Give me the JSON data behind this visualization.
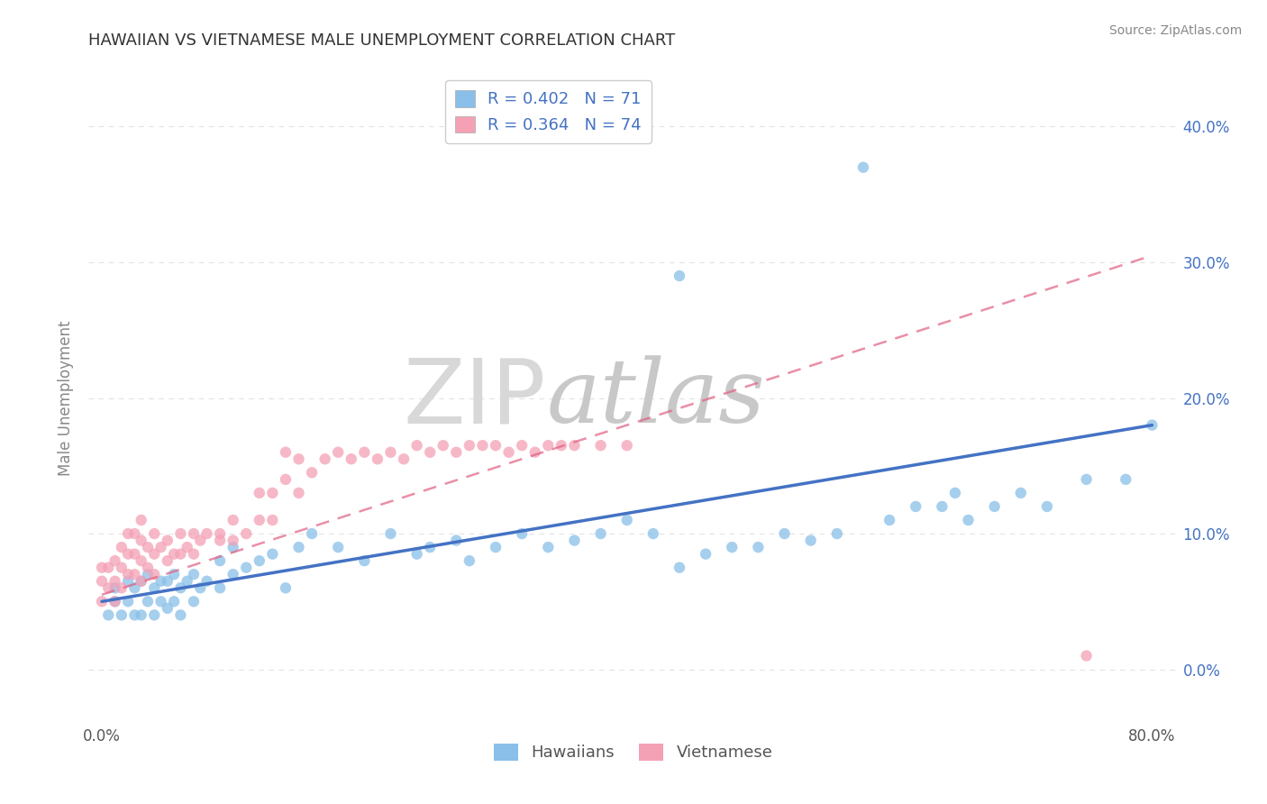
{
  "title": "HAWAIIAN VS VIETNAMESE MALE UNEMPLOYMENT CORRELATION CHART",
  "source": "Source: ZipAtlas.com",
  "ylabel": "Male Unemployment",
  "xlim": [
    -0.01,
    0.82
  ],
  "ylim": [
    -0.04,
    0.44
  ],
  "xticks": [
    0.0,
    0.1,
    0.2,
    0.3,
    0.4,
    0.5,
    0.6,
    0.7,
    0.8
  ],
  "xticklabels": [
    "0.0%",
    "",
    "",
    "",
    "",
    "",
    "",
    "",
    "80.0%"
  ],
  "yticks": [
    0.0,
    0.1,
    0.2,
    0.3,
    0.4
  ],
  "yticklabels": [
    "",
    "",
    "",
    "",
    ""
  ],
  "right_yticks": [
    0.0,
    0.1,
    0.2,
    0.3,
    0.4
  ],
  "right_yticklabels": [
    "0.0%",
    "10.0%",
    "20.0%",
    "30.0%",
    "40.0%"
  ],
  "hawaiian_color": "#89bfe8",
  "vietnamese_color": "#f4a0b5",
  "hawaiian_trend_color": "#4472c4",
  "vietnamese_trend_color": "#e06080",
  "hawaiian_R": 0.402,
  "hawaiian_N": 71,
  "vietnamese_R": 0.364,
  "vietnamese_N": 74,
  "watermark_zip": "ZIP",
  "watermark_atlas": "atlas",
  "bg_color": "#ffffff",
  "grid_color": "#d0d0d0",
  "legend_label_hawaiians": "Hawaiians",
  "legend_label_vietnamese": "Vietnamese",
  "title_color": "#333333",
  "legend_text_color": "#4472c4",
  "hawaiian_scatter_x": [
    0.005,
    0.01,
    0.01,
    0.015,
    0.02,
    0.02,
    0.025,
    0.025,
    0.03,
    0.03,
    0.035,
    0.035,
    0.04,
    0.04,
    0.045,
    0.045,
    0.05,
    0.05,
    0.055,
    0.055,
    0.06,
    0.06,
    0.065,
    0.07,
    0.07,
    0.075,
    0.08,
    0.09,
    0.09,
    0.1,
    0.1,
    0.11,
    0.12,
    0.13,
    0.14,
    0.15,
    0.16,
    0.18,
    0.2,
    0.22,
    0.24,
    0.25,
    0.27,
    0.28,
    0.3,
    0.32,
    0.34,
    0.36,
    0.38,
    0.4,
    0.42,
    0.44,
    0.44,
    0.46,
    0.48,
    0.5,
    0.52,
    0.54,
    0.56,
    0.58,
    0.6,
    0.62,
    0.64,
    0.65,
    0.66,
    0.68,
    0.7,
    0.72,
    0.75,
    0.78,
    0.8
  ],
  "hawaiian_scatter_y": [
    0.04,
    0.05,
    0.06,
    0.04,
    0.05,
    0.065,
    0.04,
    0.06,
    0.04,
    0.065,
    0.05,
    0.07,
    0.04,
    0.06,
    0.05,
    0.065,
    0.045,
    0.065,
    0.05,
    0.07,
    0.04,
    0.06,
    0.065,
    0.05,
    0.07,
    0.06,
    0.065,
    0.06,
    0.08,
    0.07,
    0.09,
    0.075,
    0.08,
    0.085,
    0.06,
    0.09,
    0.1,
    0.09,
    0.08,
    0.1,
    0.085,
    0.09,
    0.095,
    0.08,
    0.09,
    0.1,
    0.09,
    0.095,
    0.1,
    0.11,
    0.1,
    0.29,
    0.075,
    0.085,
    0.09,
    0.09,
    0.1,
    0.095,
    0.1,
    0.37,
    0.11,
    0.12,
    0.12,
    0.13,
    0.11,
    0.12,
    0.13,
    0.12,
    0.14,
    0.14,
    0.18
  ],
  "vietnamese_scatter_x": [
    0.0,
    0.0,
    0.0,
    0.005,
    0.005,
    0.01,
    0.01,
    0.01,
    0.015,
    0.015,
    0.015,
    0.02,
    0.02,
    0.02,
    0.025,
    0.025,
    0.025,
    0.03,
    0.03,
    0.03,
    0.03,
    0.035,
    0.035,
    0.04,
    0.04,
    0.04,
    0.045,
    0.05,
    0.05,
    0.055,
    0.06,
    0.06,
    0.065,
    0.07,
    0.07,
    0.075,
    0.08,
    0.09,
    0.09,
    0.1,
    0.1,
    0.11,
    0.12,
    0.12,
    0.13,
    0.13,
    0.14,
    0.14,
    0.15,
    0.15,
    0.16,
    0.17,
    0.18,
    0.19,
    0.2,
    0.21,
    0.22,
    0.23,
    0.24,
    0.25,
    0.26,
    0.27,
    0.28,
    0.29,
    0.3,
    0.31,
    0.32,
    0.33,
    0.34,
    0.35,
    0.36,
    0.38,
    0.4,
    0.75
  ],
  "vietnamese_scatter_y": [
    0.05,
    0.065,
    0.075,
    0.06,
    0.075,
    0.05,
    0.065,
    0.08,
    0.06,
    0.075,
    0.09,
    0.07,
    0.085,
    0.1,
    0.07,
    0.085,
    0.1,
    0.065,
    0.08,
    0.095,
    0.11,
    0.075,
    0.09,
    0.07,
    0.085,
    0.1,
    0.09,
    0.08,
    0.095,
    0.085,
    0.085,
    0.1,
    0.09,
    0.085,
    0.1,
    0.095,
    0.1,
    0.1,
    0.095,
    0.095,
    0.11,
    0.1,
    0.11,
    0.13,
    0.11,
    0.13,
    0.14,
    0.16,
    0.13,
    0.155,
    0.145,
    0.155,
    0.16,
    0.155,
    0.16,
    0.155,
    0.16,
    0.155,
    0.165,
    0.16,
    0.165,
    0.16,
    0.165,
    0.165,
    0.165,
    0.16,
    0.165,
    0.16,
    0.165,
    0.165,
    0.165,
    0.165,
    0.165,
    0.01
  ],
  "hawaiian_trend_x": [
    0.0,
    0.8
  ],
  "hawaiian_trend_y": [
    0.05,
    0.18
  ],
  "vietnamese_trend_x": [
    0.0,
    0.8
  ],
  "vietnamese_trend_y": [
    0.055,
    0.305
  ],
  "vietnamese_trend_end_x": 0.42,
  "vietnamese_trend_end_y": 0.165
}
